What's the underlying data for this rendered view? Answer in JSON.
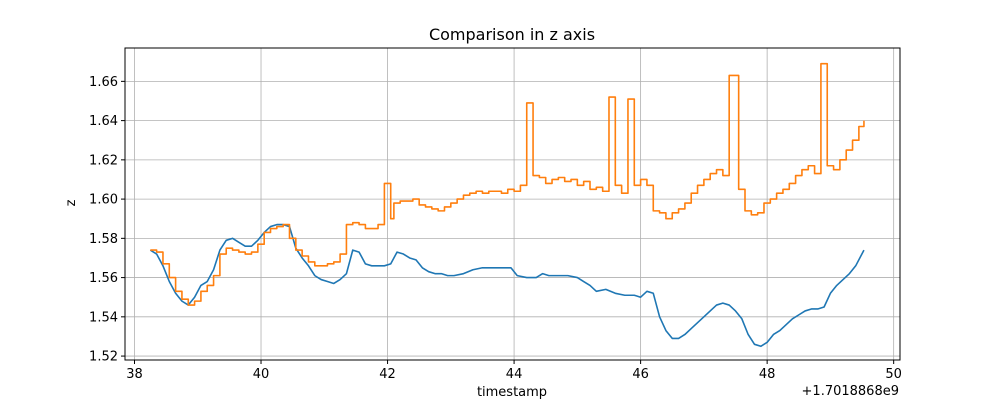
{
  "chart_data": {
    "type": "line",
    "title": "Comparison in z axis",
    "xlabel": "timestamp",
    "ylabel": "z",
    "x_offset_label": "+1.7018868e9",
    "xlim": [
      37.85,
      50.1
    ],
    "ylim": [
      1.518,
      1.677
    ],
    "xticks": [
      38,
      40,
      42,
      44,
      46,
      48,
      50
    ],
    "yticks": [
      1.52,
      1.54,
      1.56,
      1.58,
      1.6,
      1.62,
      1.64,
      1.66
    ],
    "grid": true,
    "series": [
      {
        "color": "#1f77b4",
        "step": false,
        "x": [
          38.25,
          38.35,
          38.45,
          38.55,
          38.65,
          38.75,
          38.85,
          38.95,
          39.05,
          39.15,
          39.25,
          39.35,
          39.45,
          39.55,
          39.65,
          39.75,
          39.85,
          39.95,
          40.05,
          40.15,
          40.25,
          40.35,
          40.45,
          40.55,
          40.65,
          40.75,
          40.85,
          40.95,
          41.05,
          41.15,
          41.25,
          41.35,
          41.45,
          41.55,
          41.65,
          41.75,
          41.85,
          41.95,
          42.05,
          42.15,
          42.25,
          42.35,
          42.45,
          42.55,
          42.65,
          42.75,
          42.85,
          42.95,
          43.05,
          43.2,
          43.35,
          43.5,
          43.65,
          43.8,
          43.95,
          44.05,
          44.2,
          44.35,
          44.45,
          44.55,
          44.7,
          44.85,
          45.0,
          45.1,
          45.2,
          45.3,
          45.45,
          45.6,
          45.75,
          45.9,
          46.0,
          46.1,
          46.2,
          46.3,
          46.4,
          46.5,
          46.6,
          46.7,
          46.8,
          46.9,
          47.0,
          47.1,
          47.2,
          47.3,
          47.4,
          47.5,
          47.6,
          47.7,
          47.8,
          47.9,
          48.0,
          48.1,
          48.2,
          48.3,
          48.4,
          48.5,
          48.6,
          48.7,
          48.8,
          48.9,
          49.0,
          49.1,
          49.2,
          49.3,
          49.4,
          49.53
        ],
        "y": [
          1.574,
          1.572,
          1.566,
          1.558,
          1.552,
          1.548,
          1.546,
          1.55,
          1.556,
          1.558,
          1.564,
          1.574,
          1.579,
          1.58,
          1.578,
          1.576,
          1.576,
          1.579,
          1.583,
          1.586,
          1.587,
          1.587,
          1.586,
          1.575,
          1.57,
          1.566,
          1.561,
          1.559,
          1.558,
          1.557,
          1.559,
          1.562,
          1.574,
          1.573,
          1.567,
          1.566,
          1.566,
          1.566,
          1.567,
          1.573,
          1.572,
          1.57,
          1.569,
          1.565,
          1.563,
          1.562,
          1.562,
          1.561,
          1.561,
          1.562,
          1.564,
          1.565,
          1.565,
          1.565,
          1.565,
          1.561,
          1.56,
          1.56,
          1.562,
          1.561,
          1.561,
          1.561,
          1.56,
          1.558,
          1.556,
          1.553,
          1.554,
          1.552,
          1.551,
          1.551,
          1.55,
          1.553,
          1.552,
          1.54,
          1.533,
          1.529,
          1.529,
          1.531,
          1.534,
          1.537,
          1.54,
          1.543,
          1.546,
          1.547,
          1.546,
          1.543,
          1.539,
          1.531,
          1.526,
          1.525,
          1.527,
          1.531,
          1.533,
          1.536,
          1.539,
          1.541,
          1.543,
          1.544,
          1.544,
          1.545,
          1.552,
          1.556,
          1.559,
          1.562,
          1.566,
          1.574
        ]
      },
      {
        "color": "#ff7f0e",
        "step": true,
        "x": [
          38.25,
          38.35,
          38.45,
          38.55,
          38.65,
          38.75,
          38.85,
          38.95,
          39.05,
          39.15,
          39.25,
          39.35,
          39.45,
          39.55,
          39.65,
          39.75,
          39.85,
          39.95,
          40.05,
          40.15,
          40.25,
          40.35,
          40.45,
          40.55,
          40.65,
          40.75,
          40.85,
          40.95,
          41.05,
          41.15,
          41.25,
          41.35,
          41.45,
          41.55,
          41.65,
          41.75,
          41.85,
          41.95,
          41.98,
          42.05,
          42.1,
          42.2,
          42.3,
          42.4,
          42.5,
          42.6,
          42.7,
          42.8,
          42.9,
          43.0,
          43.1,
          43.2,
          43.3,
          43.4,
          43.5,
          43.6,
          43.7,
          43.8,
          43.9,
          44.0,
          44.1,
          44.2,
          44.3,
          44.4,
          44.5,
          44.6,
          44.7,
          44.8,
          44.9,
          45.0,
          45.1,
          45.2,
          45.3,
          45.4,
          45.5,
          45.6,
          45.7,
          45.8,
          45.9,
          46.0,
          46.1,
          46.2,
          46.3,
          46.4,
          46.5,
          46.6,
          46.7,
          46.8,
          46.9,
          47.0,
          47.1,
          47.2,
          47.3,
          47.4,
          47.55,
          47.65,
          47.75,
          47.85,
          47.95,
          48.05,
          48.15,
          48.25,
          48.35,
          48.45,
          48.55,
          48.65,
          48.75,
          48.85,
          48.95,
          49.05,
          49.15,
          49.25,
          49.35,
          49.45,
          49.53
        ],
        "y": [
          1.574,
          1.573,
          1.567,
          1.56,
          1.553,
          1.549,
          1.546,
          1.548,
          1.553,
          1.556,
          1.561,
          1.572,
          1.575,
          1.574,
          1.573,
          1.572,
          1.573,
          1.577,
          1.583,
          1.585,
          1.586,
          1.587,
          1.58,
          1.574,
          1.571,
          1.568,
          1.566,
          1.566,
          1.567,
          1.568,
          1.572,
          1.587,
          1.588,
          1.587,
          1.585,
          1.585,
          1.587,
          1.608,
          1.608,
          1.59,
          1.598,
          1.599,
          1.599,
          1.6,
          1.597,
          1.596,
          1.595,
          1.594,
          1.596,
          1.598,
          1.6,
          1.602,
          1.603,
          1.604,
          1.603,
          1.604,
          1.604,
          1.603,
          1.605,
          1.604,
          1.607,
          1.649,
          1.612,
          1.611,
          1.608,
          1.61,
          1.611,
          1.609,
          1.61,
          1.607,
          1.609,
          1.605,
          1.606,
          1.604,
          1.652,
          1.607,
          1.603,
          1.651,
          1.607,
          1.61,
          1.607,
          1.594,
          1.593,
          1.59,
          1.593,
          1.595,
          1.598,
          1.603,
          1.607,
          1.61,
          1.613,
          1.615,
          1.612,
          1.663,
          1.605,
          1.594,
          1.592,
          1.593,
          1.598,
          1.6,
          1.603,
          1.605,
          1.608,
          1.612,
          1.615,
          1.617,
          1.613,
          1.669,
          1.617,
          1.615,
          1.62,
          1.625,
          1.63,
          1.637,
          1.64
        ]
      }
    ]
  }
}
